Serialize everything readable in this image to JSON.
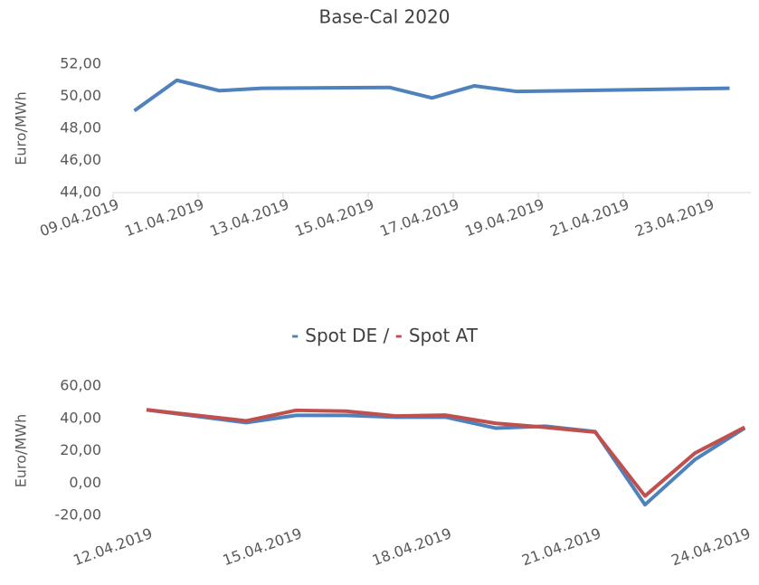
{
  "chart_data": [
    {
      "type": "line",
      "title": "Base-Cal 2020",
      "y_label": "Euro/MWh",
      "x": [
        "09.04.2019",
        "10.04.2019",
        "11.04.2019",
        "12.04.2019",
        "15.04.2019",
        "16.04.2019",
        "17.04.2019",
        "18.04.2019",
        "23.04.2019"
      ],
      "series": [
        {
          "name": "Base-Cal 2020",
          "color": "#4f81bd",
          "values": [
            49.1,
            51.0,
            50.35,
            50.5,
            50.55,
            49.9,
            50.65,
            50.3,
            50.5
          ]
        }
      ],
      "xticks": [
        "09.04.2019",
        "11.04.2019",
        "13.04.2019",
        "15.04.2019",
        "17.04.2019",
        "19.04.2019",
        "21.04.2019",
        "23.04.2019"
      ],
      "ylim": [
        44,
        52
      ],
      "yticks": [
        {
          "value": 44,
          "label": "44,00"
        },
        {
          "value": 46,
          "label": "46,00"
        },
        {
          "value": 48,
          "label": "48,00"
        },
        {
          "value": 50,
          "label": "50,00"
        },
        {
          "value": 52,
          "label": "52,00"
        }
      ],
      "grid": false
    },
    {
      "type": "line",
      "title_separator": "/",
      "y_label": "Euro/MWh",
      "x": [
        "12.04.2019",
        "14.04.2019",
        "15.04.2019",
        "16.04.2019",
        "17.04.2019",
        "18.04.2019",
        "19.04.2019",
        "20.04.2019",
        "21.04.2019",
        "22.04.2019",
        "23.04.2019",
        "24.04.2019"
      ],
      "series": [
        {
          "name": "Spot DE",
          "color": "#4f81bd",
          "values": [
            45.3,
            37.4,
            41.9,
            41.9,
            40.8,
            40.8,
            34,
            35.2,
            31.8,
            -13.4,
            14.5,
            34
          ]
        },
        {
          "name": "Spot AT",
          "color": "#c0504d",
          "values": [
            45.3,
            38.5,
            45,
            44.5,
            41.5,
            42,
            37,
            34.5,
            31.5,
            -8,
            18.5,
            34.5
          ]
        }
      ],
      "xticks": [
        "12.04.2019",
        "15.04.2019",
        "18.04.2019",
        "21.04.2019",
        "24.04.2019"
      ],
      "ylim": [
        -20,
        60
      ],
      "yticks": [
        {
          "value": -20,
          "label": "-20,00"
        },
        {
          "value": 0,
          "label": "0,00"
        },
        {
          "value": 20,
          "label": "20,00"
        },
        {
          "value": 40,
          "label": "40,00"
        },
        {
          "value": 60,
          "label": "60,00"
        }
      ],
      "grid": false
    }
  ]
}
